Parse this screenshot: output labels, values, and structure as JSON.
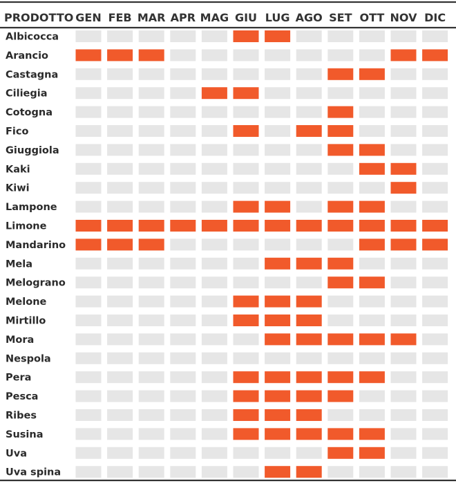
{
  "chart_data": {
    "type": "heatmap",
    "row_header": "PRODOTTO",
    "months": [
      "GEN",
      "FEB",
      "MAR",
      "APR",
      "MAG",
      "GIU",
      "LUG",
      "AGO",
      "SET",
      "OTT",
      "NOV",
      "DIC"
    ],
    "rows": [
      {
        "name": "Albicocca",
        "months": [
          0,
          0,
          0,
          0,
          0,
          1,
          1,
          0,
          0,
          0,
          0,
          0
        ]
      },
      {
        "name": "Arancio",
        "months": [
          1,
          1,
          1,
          0,
          0,
          0,
          0,
          0,
          0,
          0,
          1,
          1
        ]
      },
      {
        "name": "Castagna",
        "months": [
          0,
          0,
          0,
          0,
          0,
          0,
          0,
          0,
          1,
          1,
          0,
          0
        ]
      },
      {
        "name": "Ciliegia",
        "months": [
          0,
          0,
          0,
          0,
          1,
          1,
          0,
          0,
          0,
          0,
          0,
          0
        ]
      },
      {
        "name": "Cotogna",
        "months": [
          0,
          0,
          0,
          0,
          0,
          0,
          0,
          0,
          1,
          0,
          0,
          0
        ]
      },
      {
        "name": "Fico",
        "months": [
          0,
          0,
          0,
          0,
          0,
          1,
          0,
          1,
          1,
          0,
          0,
          0
        ]
      },
      {
        "name": "Giuggiola",
        "months": [
          0,
          0,
          0,
          0,
          0,
          0,
          0,
          0,
          1,
          1,
          0,
          0
        ]
      },
      {
        "name": "Kaki",
        "months": [
          0,
          0,
          0,
          0,
          0,
          0,
          0,
          0,
          0,
          1,
          1,
          0
        ]
      },
      {
        "name": "Kiwi",
        "months": [
          0,
          0,
          0,
          0,
          0,
          0,
          0,
          0,
          0,
          0,
          1,
          0
        ]
      },
      {
        "name": "Lampone",
        "months": [
          0,
          0,
          0,
          0,
          0,
          1,
          1,
          0,
          1,
          1,
          0,
          0
        ]
      },
      {
        "name": "Limone",
        "months": [
          1,
          1,
          1,
          1,
          1,
          1,
          1,
          1,
          1,
          1,
          1,
          1
        ]
      },
      {
        "name": "Mandarino",
        "months": [
          1,
          1,
          1,
          0,
          0,
          0,
          0,
          0,
          0,
          1,
          1,
          1
        ]
      },
      {
        "name": "Mela",
        "months": [
          0,
          0,
          0,
          0,
          0,
          0,
          1,
          1,
          1,
          0,
          0,
          0
        ]
      },
      {
        "name": "Melograno",
        "months": [
          0,
          0,
          0,
          0,
          0,
          0,
          0,
          0,
          1,
          1,
          0,
          0
        ]
      },
      {
        "name": "Melone",
        "months": [
          0,
          0,
          0,
          0,
          0,
          1,
          1,
          1,
          0,
          0,
          0,
          0
        ]
      },
      {
        "name": "Mirtillo",
        "months": [
          0,
          0,
          0,
          0,
          0,
          1,
          1,
          1,
          0,
          0,
          0,
          0
        ]
      },
      {
        "name": "Mora",
        "months": [
          0,
          0,
          0,
          0,
          0,
          0,
          1,
          1,
          1,
          1,
          1,
          0
        ]
      },
      {
        "name": "Nespola",
        "months": [
          0,
          0,
          0,
          0,
          0,
          0,
          0,
          0,
          0,
          0,
          0,
          0
        ]
      },
      {
        "name": "Pera",
        "months": [
          0,
          0,
          0,
          0,
          0,
          1,
          1,
          1,
          1,
          1,
          0,
          0
        ]
      },
      {
        "name": "Pesca",
        "months": [
          0,
          0,
          0,
          0,
          0,
          1,
          1,
          1,
          1,
          0,
          0,
          0
        ]
      },
      {
        "name": "Ribes",
        "months": [
          0,
          0,
          0,
          0,
          0,
          1,
          1,
          1,
          0,
          0,
          0,
          0
        ]
      },
      {
        "name": "Susina",
        "months": [
          0,
          0,
          0,
          0,
          0,
          1,
          1,
          1,
          1,
          1,
          0,
          0
        ]
      },
      {
        "name": "Uva",
        "months": [
          0,
          0,
          0,
          0,
          0,
          0,
          0,
          0,
          1,
          1,
          0,
          0
        ]
      },
      {
        "name": "Uva spina",
        "months": [
          0,
          0,
          0,
          0,
          0,
          0,
          1,
          1,
          0,
          0,
          0,
          0
        ]
      }
    ],
    "colors": {
      "active": "#f15a2b",
      "inactive": "#e6e6e6"
    }
  }
}
